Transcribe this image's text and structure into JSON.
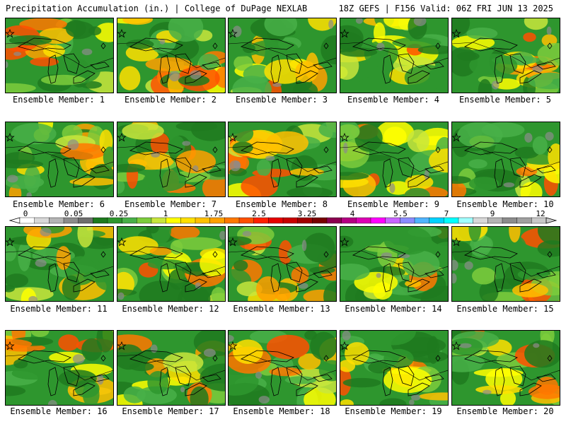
{
  "header": {
    "title_left": "Precipitation Accumulation (in.) | College of DuPage NEXLAB",
    "title_right": "18Z GEFS | F156 Valid: 06Z FRI JUN 13 2025"
  },
  "members": [
    {
      "label": "Ensemble Member: 1"
    },
    {
      "label": "Ensemble Member: 2"
    },
    {
      "label": "Ensemble Member: 3"
    },
    {
      "label": "Ensemble Member: 4"
    },
    {
      "label": "Ensemble Member: 5"
    },
    {
      "label": "Ensemble Member: 6"
    },
    {
      "label": "Ensemble Member: 7"
    },
    {
      "label": "Ensemble Member: 8"
    },
    {
      "label": "Ensemble Member: 9"
    },
    {
      "label": "Ensemble Member: 10"
    },
    {
      "label": "Ensemble Member: 11"
    },
    {
      "label": "Ensemble Member: 12"
    },
    {
      "label": "Ensemble Member: 13"
    },
    {
      "label": "Ensemble Member: 14"
    },
    {
      "label": "Ensemble Member: 15"
    },
    {
      "label": "Ensemble Member: 16"
    },
    {
      "label": "Ensemble Member: 17"
    },
    {
      "label": "Ensemble Member: 18"
    },
    {
      "label": "Ensemble Member: 19"
    },
    {
      "label": "Ensemble Member: 20"
    }
  ],
  "colorbar": {
    "tick_labels": [
      "0",
      "0.05",
      "0.25",
      "1",
      "1.75",
      "2.5",
      "3.25",
      "4",
      "5.5",
      "7",
      "9",
      "12"
    ],
    "colors": [
      "#ffffff",
      "#d8d8d8",
      "#b4b4b4",
      "#8c8c8c",
      "#6e6e6e",
      "#1e7a1e",
      "#2e962e",
      "#48b048",
      "#7ccc3c",
      "#c8e63c",
      "#ffff00",
      "#ffe000",
      "#ffc000",
      "#ffa000",
      "#ff7800",
      "#ff5000",
      "#ff2000",
      "#e60000",
      "#c80000",
      "#a00000",
      "#780000",
      "#8c0050",
      "#b40082",
      "#dc00b4",
      "#ff00ff",
      "#c864ff",
      "#8c8cff",
      "#50b4ff",
      "#00d2ff",
      "#00ffff",
      "#a0ffff",
      "#d8d8d8",
      "#b4b4b4",
      "#8c8c8c",
      "#a0a0a0",
      "#c8c8c8"
    ]
  }
}
